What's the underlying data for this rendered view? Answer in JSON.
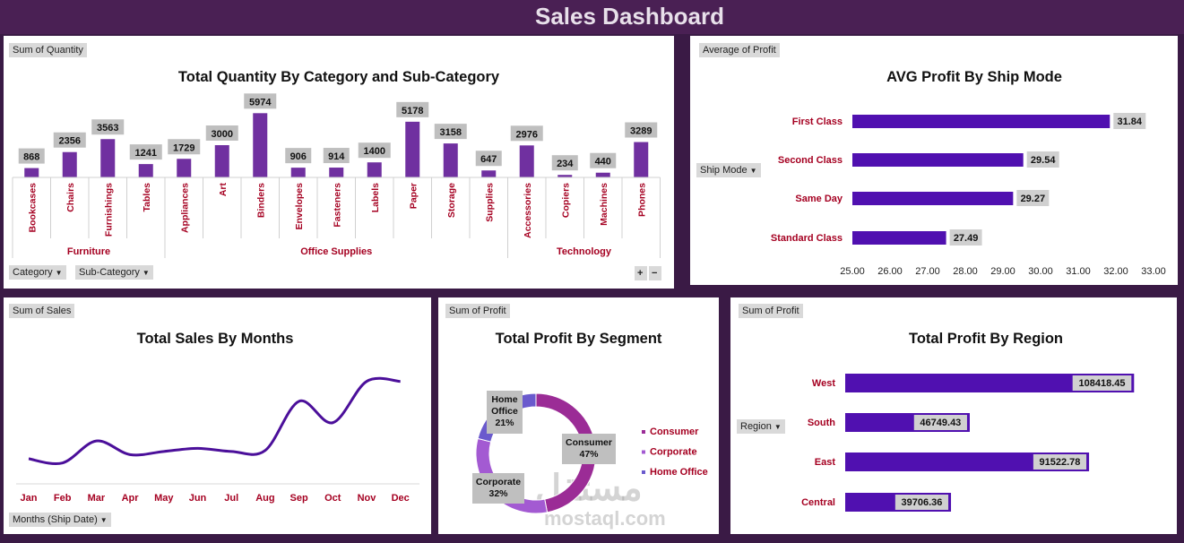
{
  "header": {
    "title": "Sales Dashboard"
  },
  "colors": {
    "bar_purple": "#7030a0",
    "hbar_purple": "#5010b0",
    "line_purple": "#4b0f9a",
    "label_red": "#a50021",
    "donut_consumer": "#9b2c96",
    "donut_corporate": "#a35ad2",
    "donut_home": "#6a5acd"
  },
  "panel_quantity": {
    "field_button": "Sum of Quantity",
    "title": "Total Quantity By Category and Sub-Category",
    "row_buttons": [
      "Category",
      "Sub-Category"
    ],
    "expand_icons": [
      "plus-icon",
      "minus-icon"
    ],
    "chart_data": {
      "type": "bar",
      "title": "Total Quantity By Category and Sub-Category",
      "categories": [
        "Bookcases",
        "Chairs",
        "Furnishings",
        "Tables",
        "Appliances",
        "Art",
        "Binders",
        "Envelopes",
        "Fasteners",
        "Labels",
        "Paper",
        "Storage",
        "Supplies",
        "Accessories",
        "Copiers",
        "Machines",
        "Phones"
      ],
      "values": [
        868,
        2356,
        3563,
        1241,
        1729,
        3000,
        5974,
        906,
        914,
        1400,
        5178,
        3158,
        647,
        2976,
        234,
        440,
        3289
      ],
      "labels": [
        "868",
        "2356",
        "3563",
        "1241",
        "1729",
        "3000",
        "5974",
        "906",
        "914",
        "1400",
        "5178",
        "3158",
        "647",
        "2976",
        "234",
        "440",
        "3289"
      ],
      "groups": [
        {
          "name": "Furniture",
          "count": 4
        },
        {
          "name": "Office Supplies",
          "count": 9
        },
        {
          "name": "Technology",
          "count": 4
        }
      ],
      "ylim": [
        0,
        6000
      ]
    }
  },
  "panel_ship": {
    "field_button": "Average of Profit",
    "title": "AVG Profit By Ship Mode",
    "filter_button": "Ship Mode",
    "chart_data": {
      "type": "bar",
      "orientation": "horizontal",
      "title": "AVG Profit By Ship Mode",
      "categories": [
        "First Class",
        "Second Class",
        "Same Day",
        "Standard Class"
      ],
      "values": [
        31.84,
        29.54,
        29.27,
        27.49
      ],
      "labels": [
        "31.84",
        "29.54",
        "29.27",
        "27.49"
      ],
      "xlim": [
        25,
        33
      ],
      "ticks": [
        "25.00",
        "26.00",
        "27.00",
        "28.00",
        "29.00",
        "30.00",
        "31.00",
        "32.00",
        "33.00"
      ]
    }
  },
  "panel_sales": {
    "field_button": "Sum of Sales",
    "title": "Total Sales By Months",
    "axis_button": "Months (Ship Date)",
    "chart_data": {
      "type": "line",
      "title": "Total Sales By Months",
      "categories": [
        "Jan",
        "Feb",
        "Mar",
        "Apr",
        "May",
        "Jun",
        "Jul",
        "Aug",
        "Sep",
        "Oct",
        "Nov",
        "Dec"
      ],
      "values": [
        0.48,
        0.4,
        0.82,
        0.56,
        0.62,
        0.68,
        0.62,
        0.64,
        1.58,
        1.17,
        1.96,
        1.96
      ],
      "ylim": [
        0,
        2.4
      ]
    }
  },
  "panel_segment": {
    "field_button": "Sum of Profit",
    "title": "Total Profit By Segment",
    "chart_data": {
      "type": "pie",
      "style": "donut",
      "title": "Total Profit By Segment",
      "categories": [
        "Consumer",
        "Corporate",
        "Home Office"
      ],
      "values": [
        47,
        32,
        21
      ],
      "labels": [
        [
          "Consumer",
          "47%"
        ],
        [
          "Corporate",
          "32%"
        ],
        [
          "Home",
          "Office",
          "21%"
        ]
      ],
      "legend": "right"
    }
  },
  "panel_region": {
    "field_button": "Sum of Profit",
    "title": "Total Profit By Region",
    "filter_button": "Region",
    "chart_data": {
      "type": "bar",
      "orientation": "horizontal",
      "title": "Total Profit By Region",
      "categories": [
        "West",
        "South",
        "East",
        "Central"
      ],
      "values": [
        108418.45,
        46749.43,
        91522.78,
        39706.36
      ],
      "labels": [
        "108418.45",
        "46749.43",
        "91522.78",
        "39706.36"
      ],
      "xlim": [
        0,
        110000
      ]
    }
  },
  "watermark": {
    "arabic": "مستقل",
    "latin": "mostaql.com"
  }
}
